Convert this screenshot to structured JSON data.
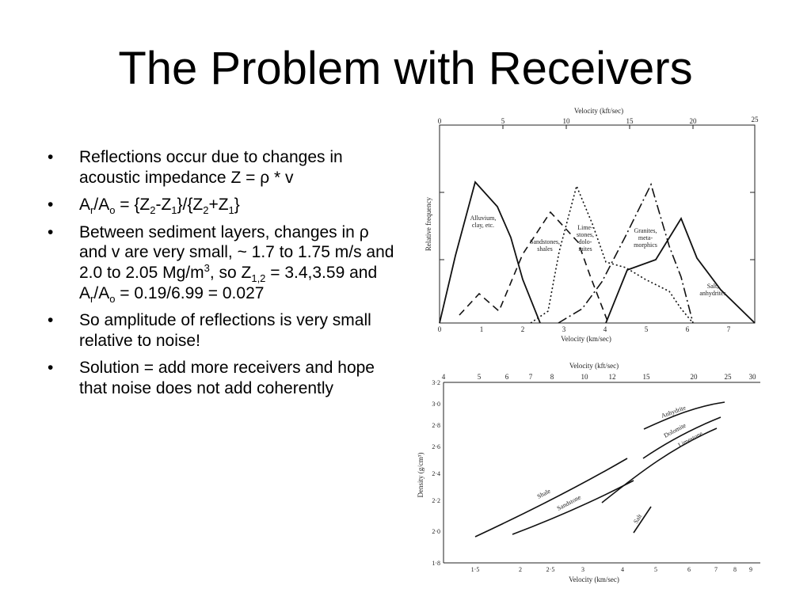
{
  "slide": {
    "title": "The Problem with Receivers"
  },
  "bullets": [
    {
      "text": "Reflections occur due to changes in acoustic impedance Z = ρ * v"
    },
    {
      "parts": [
        "A",
        "r",
        "/A",
        "o",
        " = {Z",
        "2",
        "-Z",
        "1",
        "}/{Z",
        "2",
        "+Z",
        "1",
        "}"
      ]
    },
    {
      "parts": [
        "Between sediment layers, changes in ρ and v are very small, ~ 1.7 to 1.75 m/s and 2.0 to 2.05 Mg/m",
        "3",
        ", so Z",
        "1,2",
        " = 3.4,3.59 and A",
        "r",
        "/A",
        "o",
        " = 0.19/6.99 = 0.027"
      ]
    },
    {
      "text": "So amplitude of reflections is very small relative to noise!"
    },
    {
      "text": "Solution = add more receivers and hope that noise does not add coherently"
    }
  ],
  "figure1": {
    "top_axis_label": "Velocity (kft/sec)",
    "bottom_axis_label": "Velocity (km/sec)",
    "y_axis_label": "Relative frequency",
    "top_ticks": [
      "0",
      "5",
      "10",
      "15",
      "20",
      "25"
    ],
    "bottom_ticks": [
      "0",
      "1",
      "2",
      "3",
      "4",
      "5",
      "6",
      "7"
    ],
    "labels": {
      "alluvium_1": "Alluvium,",
      "alluvium_2": "clay, etc.",
      "sandstones_1": "Sandstones,",
      "sandstones_2": "shales",
      "limestones_1": "Lime-",
      "limestones_2": "stones,",
      "limestones_3": "dolo-",
      "limestones_4": "mites",
      "granites_1": "Granites,",
      "granites_2": "meta-",
      "granites_3": "morphics",
      "salt_1": "Salt,",
      "salt_2": "anhydrites"
    }
  },
  "figure2": {
    "top_axis_label": "Velocity (kft/sec)",
    "bottom_axis_label": "Velocity (km/sec)",
    "y_axis_label": "Density (g/cm³)",
    "top_ticks": [
      "4",
      "5",
      "6",
      "7",
      "8",
      "10",
      "12",
      "15",
      "20",
      "25",
      "30"
    ],
    "bottom_ticks": [
      "1·5",
      "2",
      "2·5",
      "3",
      "4",
      "5",
      "6",
      "7",
      "8",
      "9"
    ],
    "y_ticks": [
      "3·2",
      "3·0",
      "2·8",
      "2·6",
      "2·4",
      "2·2",
      "2·0",
      "1·8"
    ],
    "labels": {
      "shale": "Shale",
      "sandstone": "Sandstone",
      "limestone": "Limestone",
      "dolomite": "Dolomite",
      "anhydrite": "Anhydrite",
      "salt": "Salt"
    }
  }
}
